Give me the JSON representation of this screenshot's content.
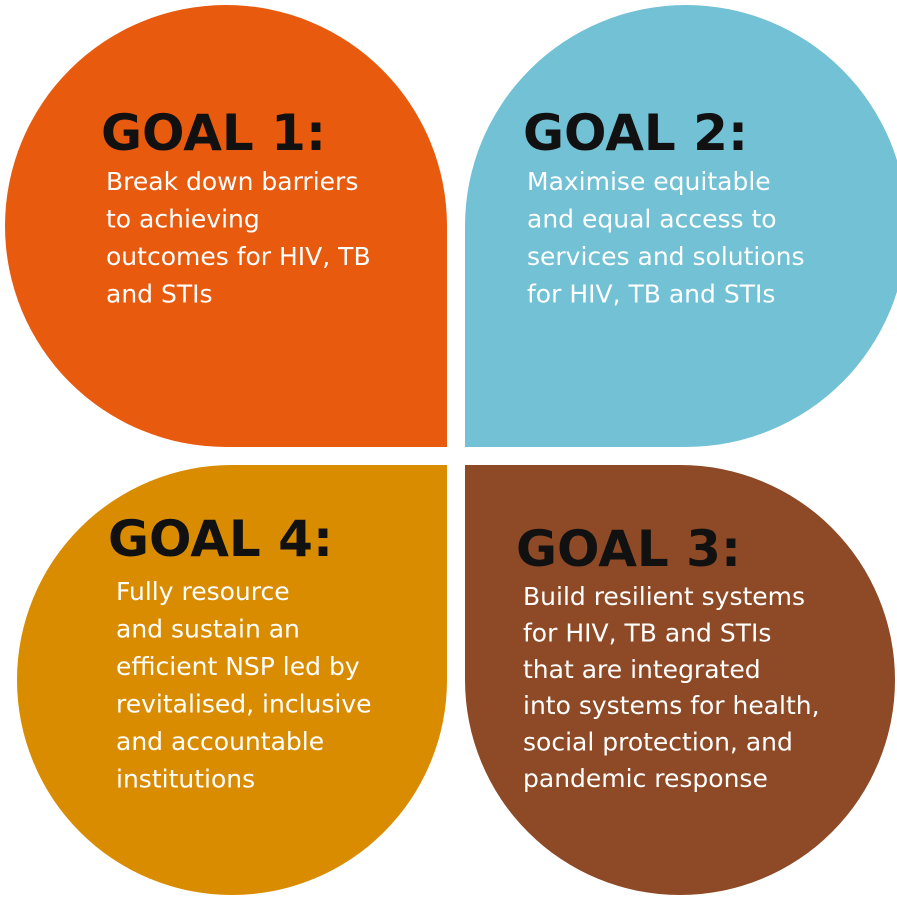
{
  "goals": [
    {
      "title": "GOAL 1:",
      "lines": [
        "Break down barriers",
        "to achieving",
        "outcomes for HIV, TB",
        "and STIs"
      ]
    },
    {
      "title": "GOAL 2:",
      "lines": [
        "Maximise equitable",
        "and equal access to",
        "services and solutions",
        "for HIV, TB and STIs"
      ]
    },
    {
      "title": "GOAL 4:",
      "lines": [
        "Fully resource",
        "and sustain an",
        "efficient NSP led by",
        "revitalised, inclusive",
        "and accountable",
        "institutions"
      ]
    },
    {
      "title": "GOAL 3:",
      "lines": [
        "Build resilient systems",
        "for HIV, TB and STIs",
        "that are integrated",
        "into systems for health,",
        "social protection, and",
        "pandemic response"
      ]
    }
  ]
}
